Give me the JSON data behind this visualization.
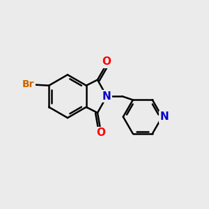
{
  "background_color": "#ebebeb",
  "bond_color": "#000000",
  "bond_width": 1.8,
  "atom_colors": {
    "O": "#ff0000",
    "N": "#0000cc",
    "Br": "#cc6600",
    "C": "#000000"
  },
  "font_size_atom": 11,
  "font_size_br": 10
}
